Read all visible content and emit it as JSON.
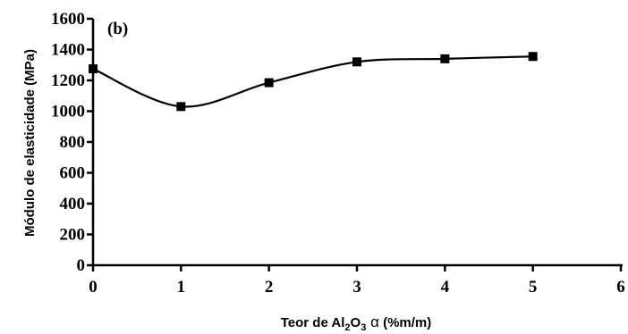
{
  "chart_data": {
    "type": "line",
    "panel_label": "(b)",
    "ylabel": "Módulo de elasticidade (MPa)",
    "xlabel": {
      "prefix": "Teor de Al",
      "sub1": "2",
      "mid": "O",
      "sub2": "3",
      "alpha": " α",
      "suffix": " (%m/m)"
    },
    "xlim": [
      0,
      6
    ],
    "ylim": [
      0,
      1600
    ],
    "xticks": [
      0,
      1,
      2,
      3,
      4,
      5,
      6
    ],
    "yticks": [
      0,
      200,
      400,
      600,
      800,
      1000,
      1200,
      1400,
      1600
    ],
    "grid": false,
    "series": [
      {
        "x": [
          0,
          1,
          2,
          3,
          4,
          5
        ],
        "y": [
          1275,
          1030,
          1185,
          1320,
          1340,
          1355
        ]
      }
    ]
  }
}
